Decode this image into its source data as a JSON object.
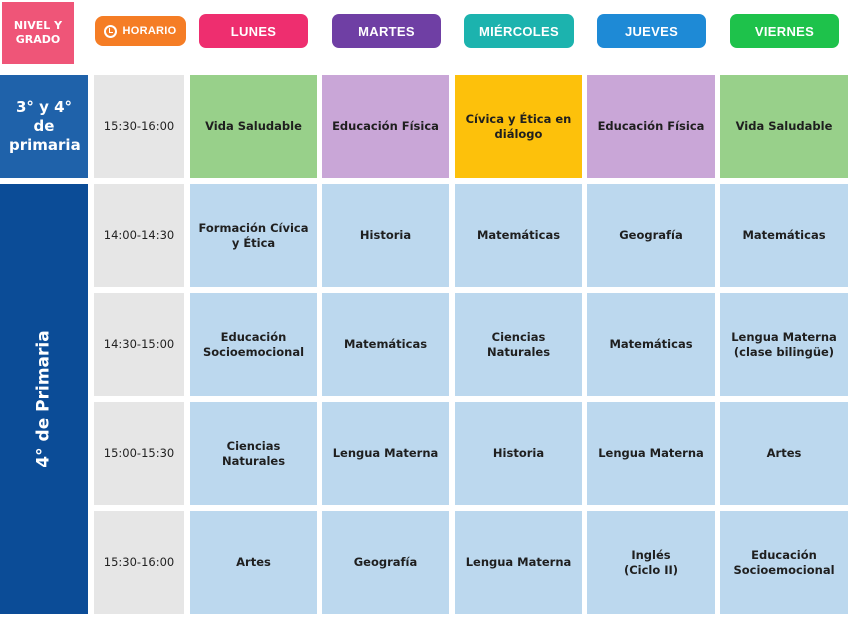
{
  "header": {
    "nivel": "NIVEL Y GRADO",
    "horario": "HORARIO",
    "days": [
      {
        "label": "LUNES",
        "color": "#ee2e6f"
      },
      {
        "label": "MARTES",
        "color": "#6f3fa4"
      },
      {
        "label": "MIÉRCOLES",
        "color": "#1cb3ae"
      },
      {
        "label": "JUEVES",
        "color": "#1e8ad6"
      },
      {
        "label": "VIERNES",
        "color": "#1ec24b"
      }
    ]
  },
  "grades": [
    {
      "label": "3° y 4° de primaria"
    },
    {
      "label": "4° de Primaria"
    }
  ],
  "rows": [
    {
      "time": "15:30-16:00",
      "cells": [
        "Vida Saludable",
        "Educación Física",
        "Cívica y Ética en diálogo",
        "Educación Física",
        "Vida Saludable"
      ]
    },
    {
      "time": "14:00-14:30",
      "cells": [
        "Formación Cívica y Ética",
        "Historia",
        "Matemáticas",
        "Geografía",
        "Matemáticas"
      ]
    },
    {
      "time": "14:30-15:00",
      "cells": [
        "Educación Socioemocional",
        "Matemáticas",
        "Ciencias Naturales",
        "Matemáticas",
        "Lengua Materna (clase bilingüe)"
      ]
    },
    {
      "time": "15:00-15:30",
      "cells": [
        "Ciencias Naturales",
        "Lengua Materna",
        "Historia",
        "Lengua Materna",
        "Artes"
      ]
    },
    {
      "time": "15:30-16:00",
      "cells": [
        "Artes",
        "Geografía",
        "Lengua Materna",
        "Inglés (Ciclo II)",
        "Educación Socioemocional"
      ]
    }
  ]
}
